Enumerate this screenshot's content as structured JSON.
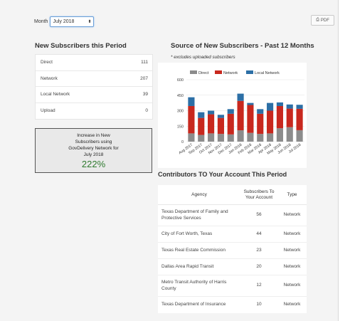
{
  "toolbar": {
    "month_label": "Month",
    "month_value": "July 2018",
    "pdf_label": "PDF"
  },
  "new_subscribers": {
    "title": "New Subscribers this Period",
    "rows": [
      {
        "label": "Direct",
        "value": "111"
      },
      {
        "label": "Network",
        "value": "207"
      },
      {
        "label": "Local Network",
        "value": "39"
      },
      {
        "label": "Upload",
        "value": "0"
      }
    ]
  },
  "callout": {
    "line1": "Increase in New",
    "line2": "Subscribers using",
    "line3": "GovDelivery Network for",
    "line4": "July 2018",
    "percent": "222%"
  },
  "source_section": {
    "title": "Source of New Subscribers - Past 12 Months",
    "note": "* excludes uploaded subscribers"
  },
  "chart_data": {
    "type": "bar",
    "stacked": true,
    "categories": [
      "Aug 2017",
      "Sep 2017",
      "Oct 2017",
      "Nov 2017",
      "Dec 2017",
      "Jan 2018",
      "Feb 2018",
      "Mar 2018",
      "Apr 2018",
      "May 2018",
      "Jun 2018",
      "Jul 2018"
    ],
    "series": [
      {
        "name": "Direct",
        "color": "#8c8c8c",
        "values": [
          80,
          65,
          80,
          75,
          70,
          110,
          85,
          75,
          80,
          130,
          140,
          111
        ]
      },
      {
        "name": "Network",
        "color": "#c8281e",
        "values": [
          265,
          165,
          185,
          155,
          200,
          285,
          270,
          195,
          220,
          215,
          180,
          207
        ]
      },
      {
        "name": "Local Network",
        "color": "#2c6fa6",
        "values": [
          85,
          55,
          35,
          30,
          45,
          70,
          20,
          45,
          75,
          35,
          40,
          39
        ]
      }
    ],
    "yticks": [
      0,
      150,
      300,
      450,
      600
    ],
    "ylim": [
      0,
      600
    ],
    "legend_position": "top"
  },
  "contributors": {
    "title": "Contributors TO Your Account This Period",
    "headers": {
      "agency": "Agency",
      "subs_line1": "Subscribers To",
      "subs_line2": "Your Account",
      "type": "Type"
    },
    "rows": [
      {
        "agency_l1": "Texas Department of Family and",
        "agency_l2": "Protective Services",
        "subs": "56",
        "type": "Network"
      },
      {
        "agency_l1": "City of Fort Worth, Texas",
        "agency_l2": "",
        "subs": "44",
        "type": "Network"
      },
      {
        "agency_l1": "Texas Real Estate Commission",
        "agency_l2": "",
        "subs": "23",
        "type": "Network"
      },
      {
        "agency_l1": "Dallas Area Rapid Transit",
        "agency_l2": "",
        "subs": "20",
        "type": "Network"
      },
      {
        "agency_l1": "Metro Transit Authority of Harris",
        "agency_l2": "County",
        "subs": "12",
        "type": "Network"
      },
      {
        "agency_l1": "Texas Department of Insurance",
        "agency_l2": "",
        "subs": "10",
        "type": "Network"
      }
    ]
  }
}
